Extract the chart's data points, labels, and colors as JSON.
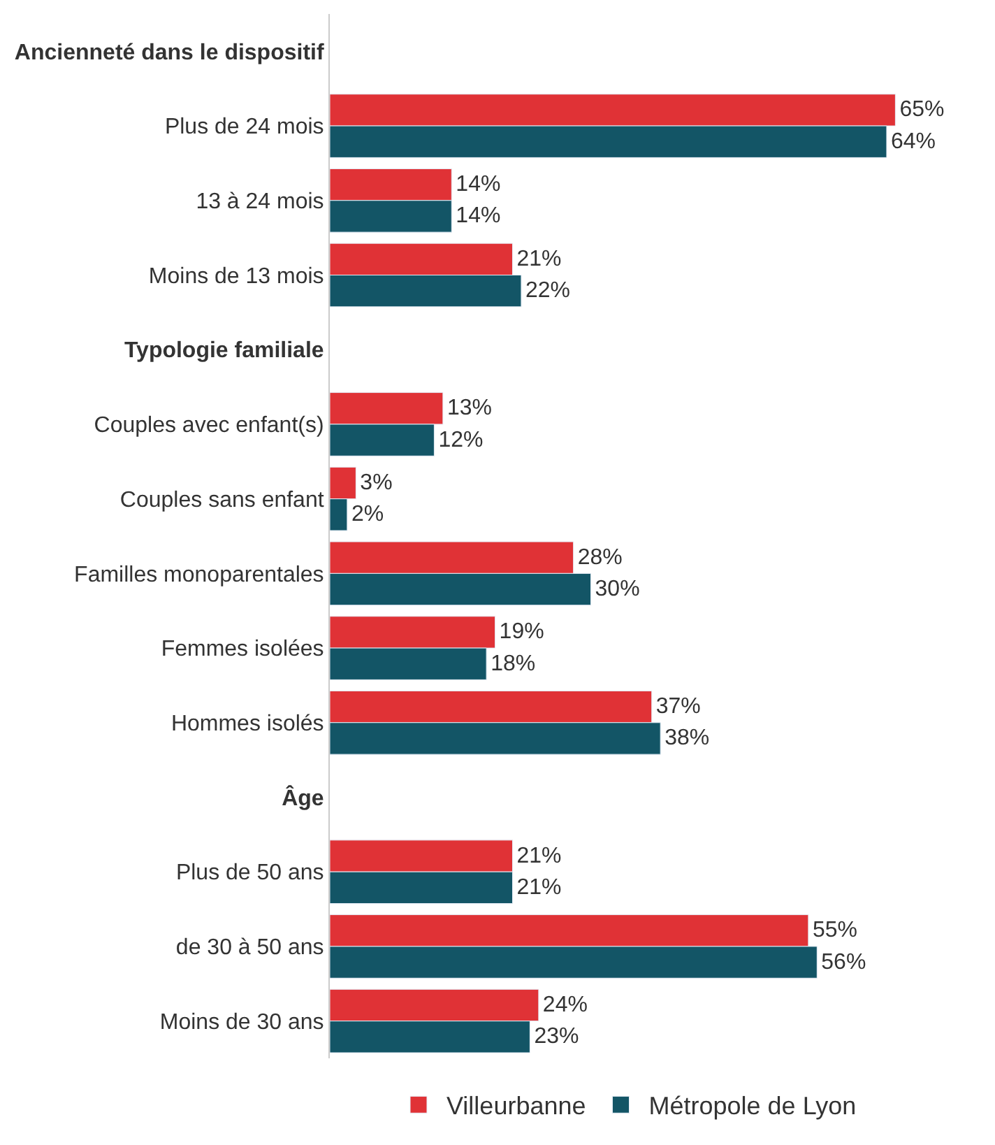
{
  "chart_data": {
    "type": "bar",
    "orientation": "horizontal",
    "categories": [
      "Ancienneté dans le dispositif",
      "Plus de 24 mois",
      "13 à 24 mois",
      "Moins de 13 mois",
      "Typologie familiale",
      "Couples avec enfant(s)",
      "Couples sans enfant",
      "Familles monoparentales",
      "Femmes isolées",
      "Hommes isolés",
      "Âge",
      "Plus de 50 ans",
      "de 30 à 50 ans",
      "Moins de 30 ans"
    ],
    "series": [
      {
        "name": "Villeurbanne",
        "color": "#e03236",
        "values": [
          null,
          65,
          14,
          21,
          null,
          13,
          3,
          28,
          19,
          37,
          null,
          21,
          55,
          24
        ],
        "value_labels": [
          null,
          "65%",
          "14%",
          "21%",
          null,
          "13%",
          "3%",
          "28%",
          "19%",
          "37%",
          null,
          "21%",
          "55%",
          "24%"
        ]
      },
      {
        "name": "Métropole de Lyon",
        "color": "#135566",
        "values": [
          null,
          64,
          14,
          22,
          null,
          12,
          2,
          30,
          18,
          38,
          null,
          21,
          56,
          23
        ],
        "value_labels": [
          null,
          "64%",
          "14%",
          "22%",
          null,
          "12%",
          "2%",
          "30%",
          "18%",
          "38%",
          null,
          "21%",
          "56%",
          "23%"
        ]
      }
    ],
    "legend": "bottom"
  }
}
